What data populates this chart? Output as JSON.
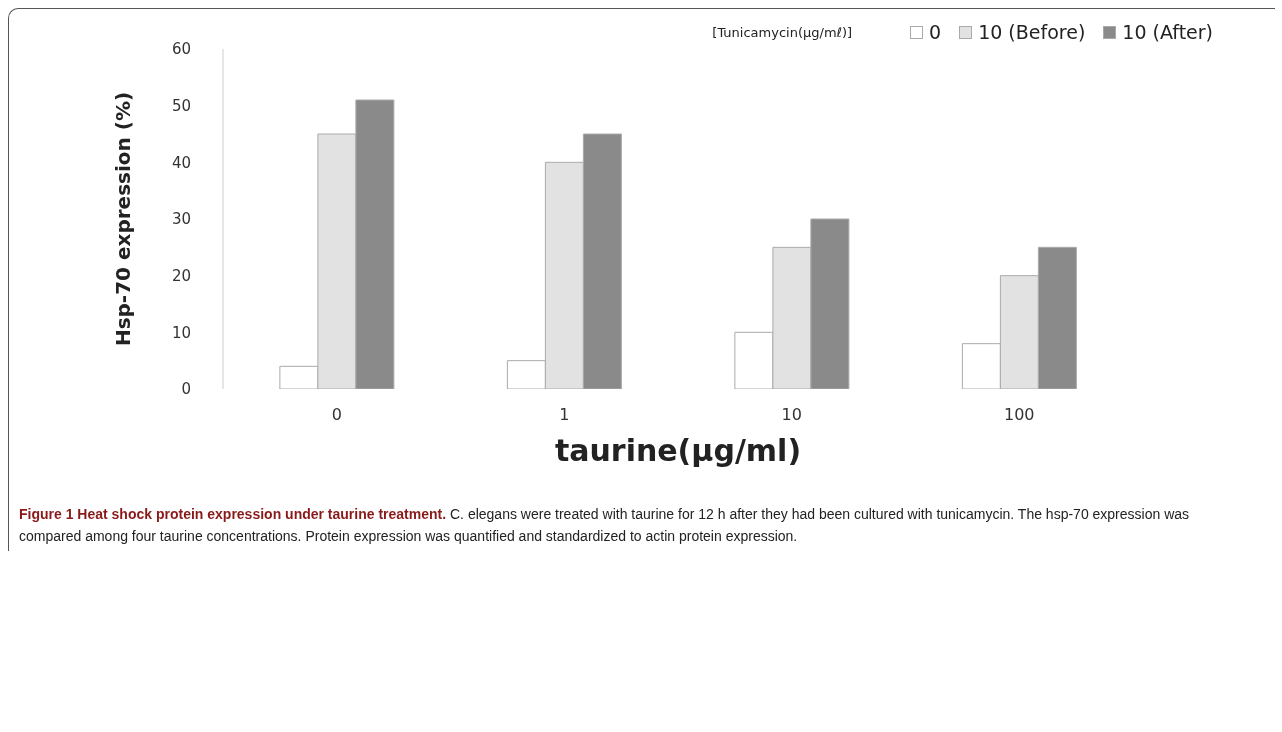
{
  "chart_data": {
    "type": "bar",
    "xlabel": "taurine(μg/ml)",
    "ylabel": "Hsp-70 expression (%)",
    "legend_title": "[Tunicamycin(μg/mℓ)]",
    "categories": [
      "0",
      "1",
      "10",
      "100"
    ],
    "series": [
      {
        "name": "0",
        "color": "#ffffff",
        "values": [
          4,
          5,
          10,
          8
        ]
      },
      {
        "name": "10 (Before)",
        "color": "#e2e2e2",
        "values": [
          45,
          40,
          25,
          20
        ]
      },
      {
        "name": "10 (After)",
        "color": "#8a8a8a",
        "values": [
          51,
          45,
          30,
          25
        ]
      }
    ],
    "ylim": [
      0,
      60
    ],
    "yticks": [
      0,
      10,
      20,
      30,
      40,
      50,
      60
    ],
    "grid": false,
    "legend": "top right",
    "annotations": [
      "Figure 1 Heat shock protein expression under taurine treatment.",
      "C. elegans were treated with taurine for 12 h after they had been cultured with tunicamycin. The hsp-70 expression was compared among four taurine concentrations. Protein expression was quantified and standardized to actin protein expression."
    ]
  }
}
